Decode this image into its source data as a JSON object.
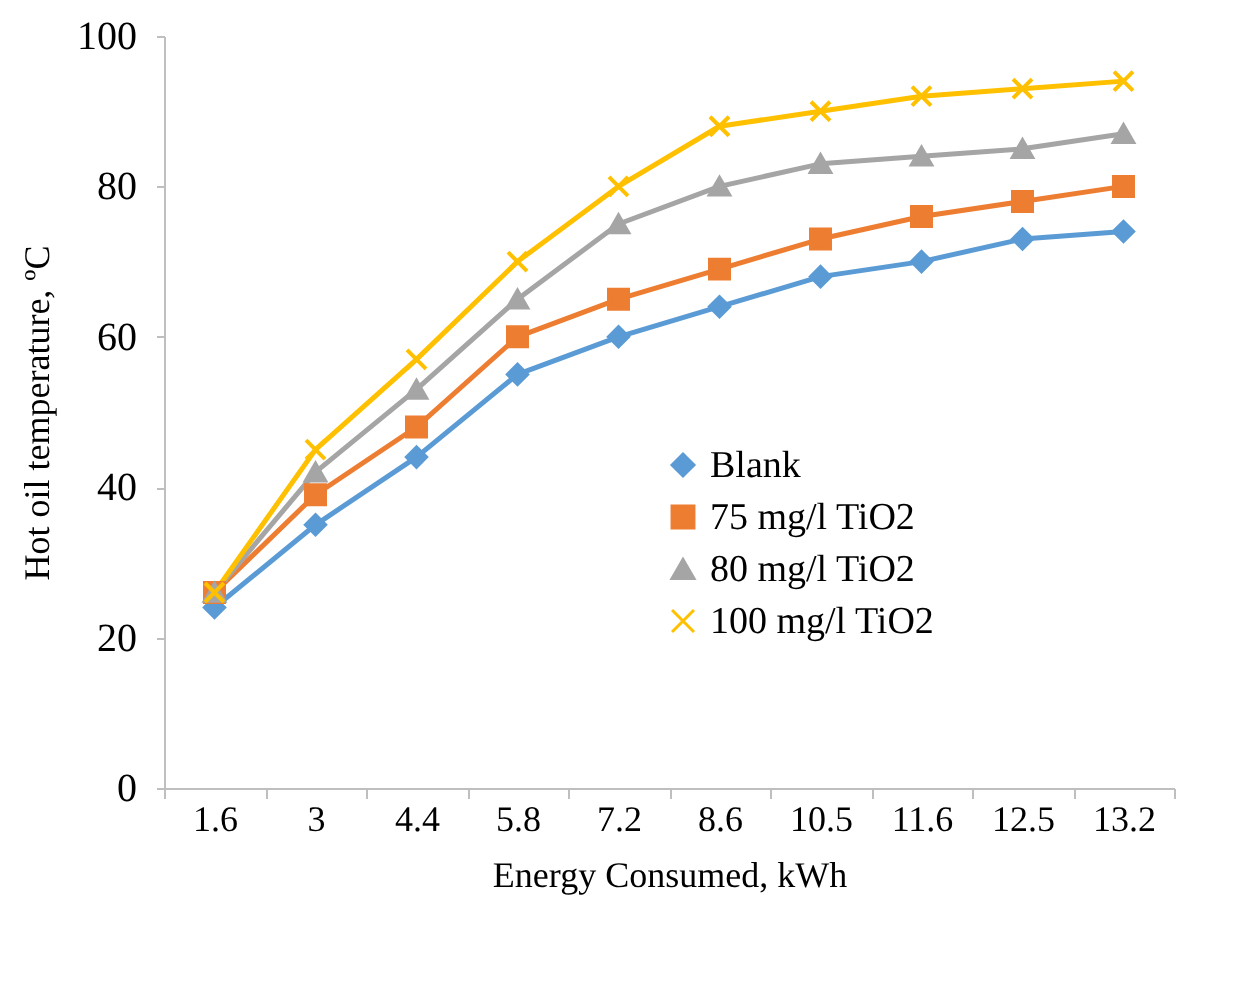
{
  "chart_data": {
    "type": "line",
    "xlabel": "Energy Consumed, kWh",
    "ylabel": "Hot oil temperature, ºC",
    "categories": [
      "1.6",
      "3",
      "4.4",
      "5.8",
      "7.2",
      "8.6",
      "10.5",
      "11.6",
      "12.5",
      "13.2"
    ],
    "ylim": [
      0,
      100
    ],
    "yticks": [
      0,
      20,
      40,
      60,
      80,
      100
    ],
    "legend": "bottom right",
    "series": [
      {
        "name": "Blank",
        "color": "#5b9bd5",
        "marker": "diamond",
        "values": [
          24,
          35,
          44,
          55,
          60,
          64,
          68,
          70,
          73,
          74
        ]
      },
      {
        "name": "75 mg/l TiO2",
        "color": "#ed7d31",
        "marker": "square",
        "values": [
          26,
          39,
          48,
          60,
          65,
          69,
          73,
          76,
          78,
          80
        ]
      },
      {
        "name": "80 mg/l TiO2",
        "color": "#a5a5a5",
        "marker": "triangle",
        "values": [
          26,
          42,
          53,
          65,
          75,
          80,
          83,
          84,
          85,
          87
        ]
      },
      {
        "name": "100 mg/l TiO2",
        "color": "#ffc000",
        "marker": "cross",
        "values": [
          26,
          45,
          57,
          70,
          80,
          88,
          90,
          92,
          93,
          94
        ]
      }
    ]
  }
}
